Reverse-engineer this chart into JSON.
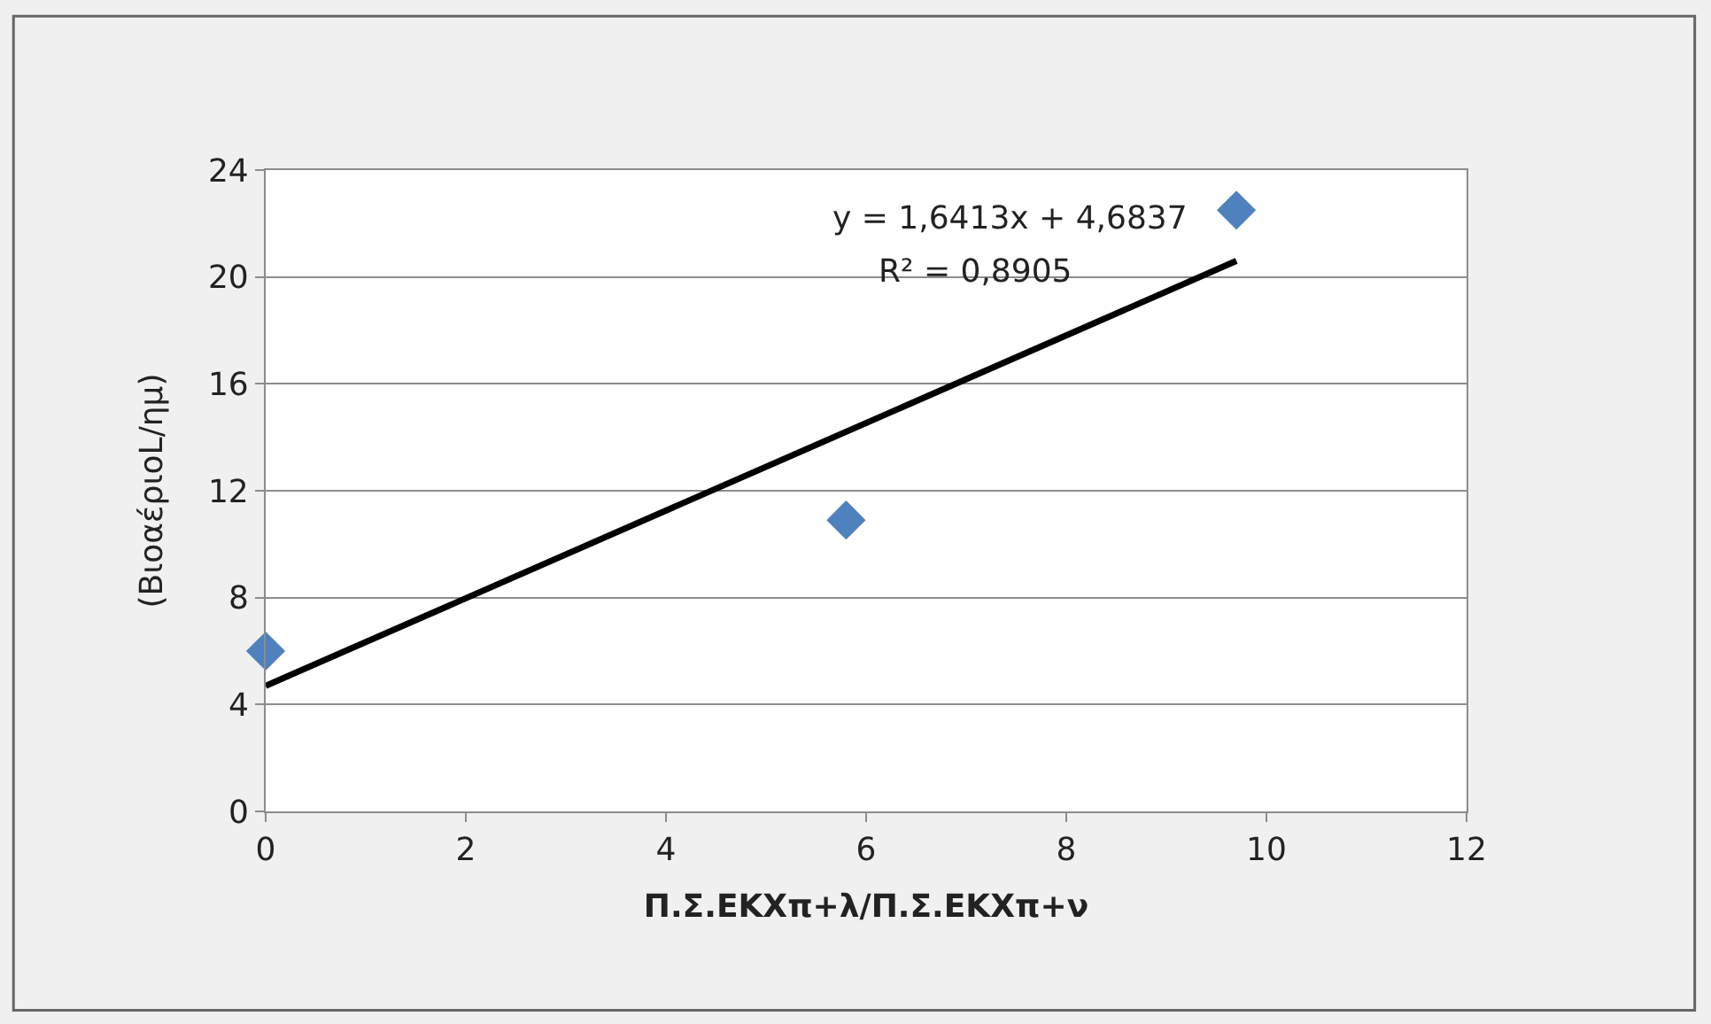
{
  "chart_data": {
    "type": "scatter",
    "xlabel": "Π.Σ.ΕΚΧπ+λ/Π.Σ.ΕΚΧπ+ν",
    "ylabel": "(ΒιοαέριοL/ημ)",
    "series": [
      {
        "color": "#4f81bd",
        "marker": "diamond",
        "x": [
          0,
          5.8,
          9.7
        ],
        "values": [
          6.0,
          10.9,
          22.5
        ]
      },
      {
        "type": "line",
        "color": "#000000",
        "marker": "none",
        "line_style": "solid",
        "x": [
          0,
          9.7
        ],
        "values": [
          4.7,
          20.6
        ]
      }
    ],
    "annotations": [
      "y = 1,6413x + 4,6837",
      "R² = 0,8905"
    ],
    "xlim": [
      0,
      12
    ],
    "xticks": [
      0,
      2,
      4,
      6,
      8,
      10,
      12
    ],
    "ylim": [
      0,
      24
    ],
    "yticks": [
      0,
      4,
      8,
      12,
      16,
      20,
      24
    ],
    "grid": "y",
    "legend": false
  }
}
